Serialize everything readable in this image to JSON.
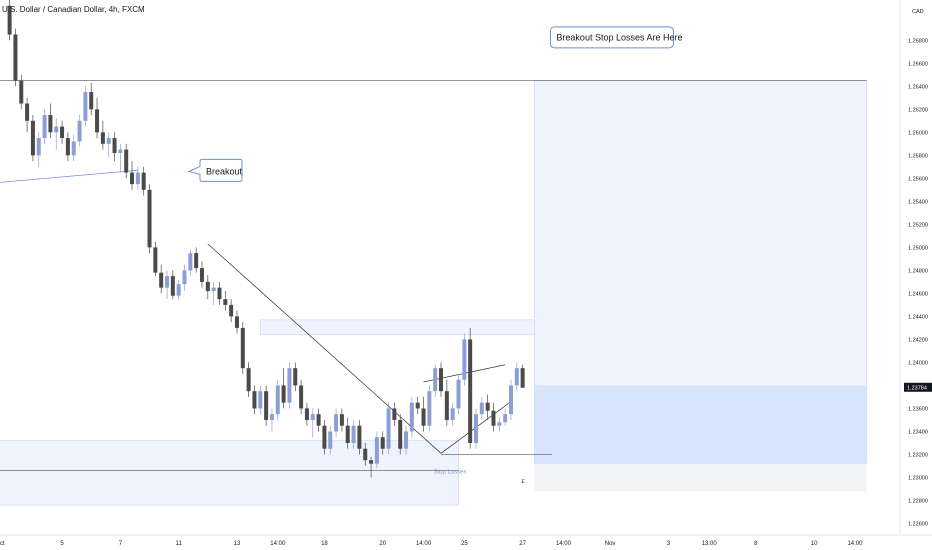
{
  "header": {
    "title": "U.S. Dollar / Canadian Dollar, 4h, FXCM",
    "currency": "CAD"
  },
  "chart_data": {
    "type": "candlestick",
    "symbol": "USDCAD",
    "timeframe": "4h",
    "ylim": [
      1.225,
      1.2715
    ],
    "yticks": [
      1.268,
      1.266,
      1.264,
      1.262,
      1.26,
      1.258,
      1.256,
      1.254,
      1.252,
      1.25,
      1.248,
      1.246,
      1.244,
      1.242,
      1.24,
      1.238,
      1.236,
      1.234,
      1.232,
      1.23,
      1.228,
      1.226
    ],
    "ytick_labels": [
      "1.26800",
      "1.26600",
      "1.26400",
      "1.26200",
      "1.26000",
      "1.25800",
      "1.25600",
      "1.25400",
      "1.25200",
      "1.25000",
      "1.24800",
      "1.24600",
      "1.24400",
      "1.24200",
      "1.24000",
      "1.23800",
      "1.23600",
      "1.23400",
      "1.23200",
      "1.23000",
      "1.22800",
      "1.22600"
    ],
    "xticks": [
      {
        "label": "ct",
        "bar": 0
      },
      {
        "label": "5",
        "bar": 9
      },
      {
        "label": "7",
        "bar": 19
      },
      {
        "label": "11",
        "bar": 29
      },
      {
        "label": "13",
        "bar": 39
      },
      {
        "label": "14:00",
        "bar": 46
      },
      {
        "label": "18",
        "bar": 54
      },
      {
        "label": "20",
        "bar": 64
      },
      {
        "label": "14:00",
        "bar": 71
      },
      {
        "label": "25",
        "bar": 78
      },
      {
        "label": "27",
        "bar": 88
      },
      {
        "label": "14:00",
        "bar": 95
      },
      {
        "label": "Nov",
        "bar": 103
      },
      {
        "label": "3",
        "bar": 113
      },
      {
        "label": "13:00",
        "bar": 120
      },
      {
        "label": "8",
        "bar": 128
      },
      {
        "label": "10",
        "bar": 138
      },
      {
        "label": "14:00",
        "bar": 145
      }
    ],
    "last_price": 1.23784,
    "last_price_label": "1.23784",
    "colors": {
      "up": "#8b9fd6",
      "down": "#4a4a4a",
      "zone": "#dbe5fb",
      "zone_border": "#6f8fd8",
      "line": "#555555"
    },
    "candles": [
      [
        1.271,
        1.2715,
        1.268,
        1.2685
      ],
      [
        1.2685,
        1.269,
        1.264,
        1.2645
      ],
      [
        1.2645,
        1.265,
        1.262,
        1.2625
      ],
      [
        1.2625,
        1.263,
        1.26,
        1.261
      ],
      [
        1.261,
        1.2615,
        1.2575,
        1.258
      ],
      [
        1.258,
        1.26,
        1.257,
        1.2595
      ],
      [
        1.2595,
        1.262,
        1.259,
        1.2615
      ],
      [
        1.2615,
        1.2625,
        1.2595,
        1.26
      ],
      [
        1.26,
        1.2612,
        1.2585,
        1.2605
      ],
      [
        1.2605,
        1.261,
        1.259,
        1.2595
      ],
      [
        1.2595,
        1.26,
        1.2575,
        1.258
      ],
      [
        1.258,
        1.2598,
        1.2575,
        1.2592
      ],
      [
        1.2592,
        1.2615,
        1.2588,
        1.261
      ],
      [
        1.261,
        1.264,
        1.2605,
        1.2635
      ],
      [
        1.2635,
        1.2643,
        1.2615,
        1.262
      ],
      [
        1.262,
        1.263,
        1.2595,
        1.26
      ],
      [
        1.26,
        1.261,
        1.2585,
        1.259
      ],
      [
        1.259,
        1.26,
        1.2578,
        1.2595
      ],
      [
        1.2595,
        1.26,
        1.2575,
        1.2582
      ],
      [
        1.2582,
        1.259,
        1.2565,
        1.2585
      ],
      [
        1.2585,
        1.259,
        1.256,
        1.2565
      ],
      [
        1.2565,
        1.2575,
        1.255,
        1.2555
      ],
      [
        1.2555,
        1.257,
        1.255,
        1.2565
      ],
      [
        1.2565,
        1.257,
        1.2545,
        1.255
      ],
      [
        1.255,
        1.2555,
        1.2495,
        1.25
      ],
      [
        1.25,
        1.2505,
        1.2475,
        1.2478
      ],
      [
        1.2478,
        1.2485,
        1.246,
        1.2465
      ],
      [
        1.2465,
        1.248,
        1.2455,
        1.2475
      ],
      [
        1.2475,
        1.248,
        1.2455,
        1.2458
      ],
      [
        1.2458,
        1.2472,
        1.2455,
        1.2468
      ],
      [
        1.2468,
        1.2485,
        1.2462,
        1.248
      ],
      [
        1.248,
        1.2498,
        1.2475,
        1.2495
      ],
      [
        1.2495,
        1.25,
        1.2478,
        1.2482
      ],
      [
        1.2482,
        1.2488,
        1.2465,
        1.247
      ],
      [
        1.247,
        1.2476,
        1.2455,
        1.2462
      ],
      [
        1.2462,
        1.247,
        1.245,
        1.2465
      ],
      [
        1.2465,
        1.247,
        1.245,
        1.2455
      ],
      [
        1.2455,
        1.2462,
        1.2445,
        1.245
      ],
      [
        1.245,
        1.2455,
        1.2435,
        1.244
      ],
      [
        1.244,
        1.2445,
        1.2425,
        1.243
      ],
      [
        1.243,
        1.2435,
        1.239,
        1.2395
      ],
      [
        1.2395,
        1.24,
        1.237,
        1.2375
      ],
      [
        1.2375,
        1.238,
        1.2355,
        1.236
      ],
      [
        1.236,
        1.238,
        1.2355,
        1.2375
      ],
      [
        1.2375,
        1.238,
        1.2345,
        1.235
      ],
      [
        1.235,
        1.236,
        1.234,
        1.2355
      ],
      [
        1.2355,
        1.2385,
        1.235,
        1.238
      ],
      [
        1.238,
        1.2395,
        1.236,
        1.2365
      ],
      [
        1.2365,
        1.24,
        1.236,
        1.2395
      ],
      [
        1.2395,
        1.24,
        1.2375,
        1.238
      ],
      [
        1.238,
        1.2385,
        1.2355,
        1.236
      ],
      [
        1.236,
        1.2365,
        1.2345,
        1.235
      ],
      [
        1.235,
        1.236,
        1.2335,
        1.2355
      ],
      [
        1.2355,
        1.236,
        1.234,
        1.2345
      ],
      [
        1.2345,
        1.235,
        1.232,
        1.2325
      ],
      [
        1.2325,
        1.2345,
        1.232,
        1.234
      ],
      [
        1.234,
        1.236,
        1.2335,
        1.2355
      ],
      [
        1.2355,
        1.236,
        1.234,
        1.2345
      ],
      [
        1.2345,
        1.2352,
        1.2325,
        1.233
      ],
      [
        1.233,
        1.235,
        1.2325,
        1.2345
      ],
      [
        1.2345,
        1.235,
        1.232,
        1.2325
      ],
      [
        1.2325,
        1.233,
        1.231,
        1.2315
      ],
      [
        1.2315,
        1.2318,
        1.23,
        1.2312
      ],
      [
        1.2312,
        1.234,
        1.2308,
        1.2335
      ],
      [
        1.2335,
        1.234,
        1.232,
        1.2325
      ],
      [
        1.2325,
        1.2365,
        1.232,
        1.236
      ],
      [
        1.236,
        1.2365,
        1.2345,
        1.235
      ],
      [
        1.235,
        1.2355,
        1.232,
        1.2325
      ],
      [
        1.2325,
        1.2345,
        1.232,
        1.234
      ],
      [
        1.234,
        1.237,
        1.2335,
        1.2365
      ],
      [
        1.2365,
        1.237,
        1.2355,
        1.236
      ],
      [
        1.236,
        1.237,
        1.234,
        1.2345
      ],
      [
        1.2345,
        1.238,
        1.234,
        1.2375
      ],
      [
        1.2375,
        1.2398,
        1.237,
        1.2395
      ],
      [
        1.2395,
        1.24,
        1.237,
        1.2375
      ],
      [
        1.2375,
        1.2385,
        1.2345,
        1.235
      ],
      [
        1.235,
        1.2365,
        1.2345,
        1.236
      ],
      [
        1.236,
        1.239,
        1.2355,
        1.2385
      ],
      [
        1.2385,
        1.2425,
        1.238,
        1.242
      ],
      [
        1.242,
        1.243,
        1.2325,
        1.233
      ],
      [
        1.233,
        1.236,
        1.2325,
        1.2355
      ],
      [
        1.2355,
        1.237,
        1.235,
        1.2365
      ],
      [
        1.2365,
        1.2372,
        1.235,
        1.2358
      ],
      [
        1.2358,
        1.2365,
        1.234,
        1.2345
      ],
      [
        1.2345,
        1.2352,
        1.234,
        1.2348
      ],
      [
        1.2348,
        1.236,
        1.2345,
        1.2355
      ],
      [
        1.2355,
        1.2385,
        1.235,
        1.238
      ],
      [
        1.238,
        1.24,
        1.2375,
        1.2395
      ],
      [
        1.2395,
        1.2398,
        1.2378,
        1.2378
      ]
    ],
    "zones": [
      {
        "from_bar": -5,
        "to_bar": 77,
        "top": 1.2332,
        "bottom": 1.2276
      },
      {
        "from_bar": 43,
        "to_bar": 90,
        "top": 1.2437,
        "bottom": 1.2424
      },
      {
        "from_bar": 90,
        "to_bar": 147,
        "top": 1.2645,
        "bottom": 1.2312
      }
    ],
    "lower_zone": {
      "from_bar": 90,
      "to_bar": 147,
      "top": 1.2312,
      "bottom": 1.2288
    },
    "price_band": {
      "from_bar": 90,
      "to_bar": 147,
      "top": 1.238,
      "bottom": 1.2312
    },
    "hlines": [
      {
        "from_bar": -5,
        "to_bar": 147,
        "y": 1.2645
      },
      {
        "from_bar": -5,
        "to_bar": 77,
        "y": 1.2306
      },
      {
        "from_bar": 74,
        "to_bar": 93,
        "y": 1.232
      }
    ],
    "trendlines": [
      {
        "x1": -5,
        "y1": 1.2555,
        "x2": 22,
        "y2": 1.2567,
        "color": "#6f8fd8"
      },
      {
        "x1": 34,
        "y1": 1.2503,
        "x2": 74,
        "y2": 1.2321,
        "color": "#333333"
      },
      {
        "x1": 74,
        "y1": 1.2321,
        "x2": 86,
        "y2": 1.2366,
        "color": "#333333"
      },
      {
        "x1": 71,
        "y1": 1.2383,
        "x2": 85,
        "y2": 1.2398,
        "color": "#333333"
      }
    ],
    "annotations": [
      {
        "text": "Breakout",
        "bar": 33,
        "y": 1.2566
      },
      {
        "text": "Breakout Stop Losses Are Here",
        "bar": 101,
        "y": 1.2683
      },
      {
        "text": "Stop Losses",
        "bar": 77,
        "y": 1.2314
      },
      {
        "text": "£",
        "bar": 88,
        "y": 1.2304
      }
    ]
  }
}
